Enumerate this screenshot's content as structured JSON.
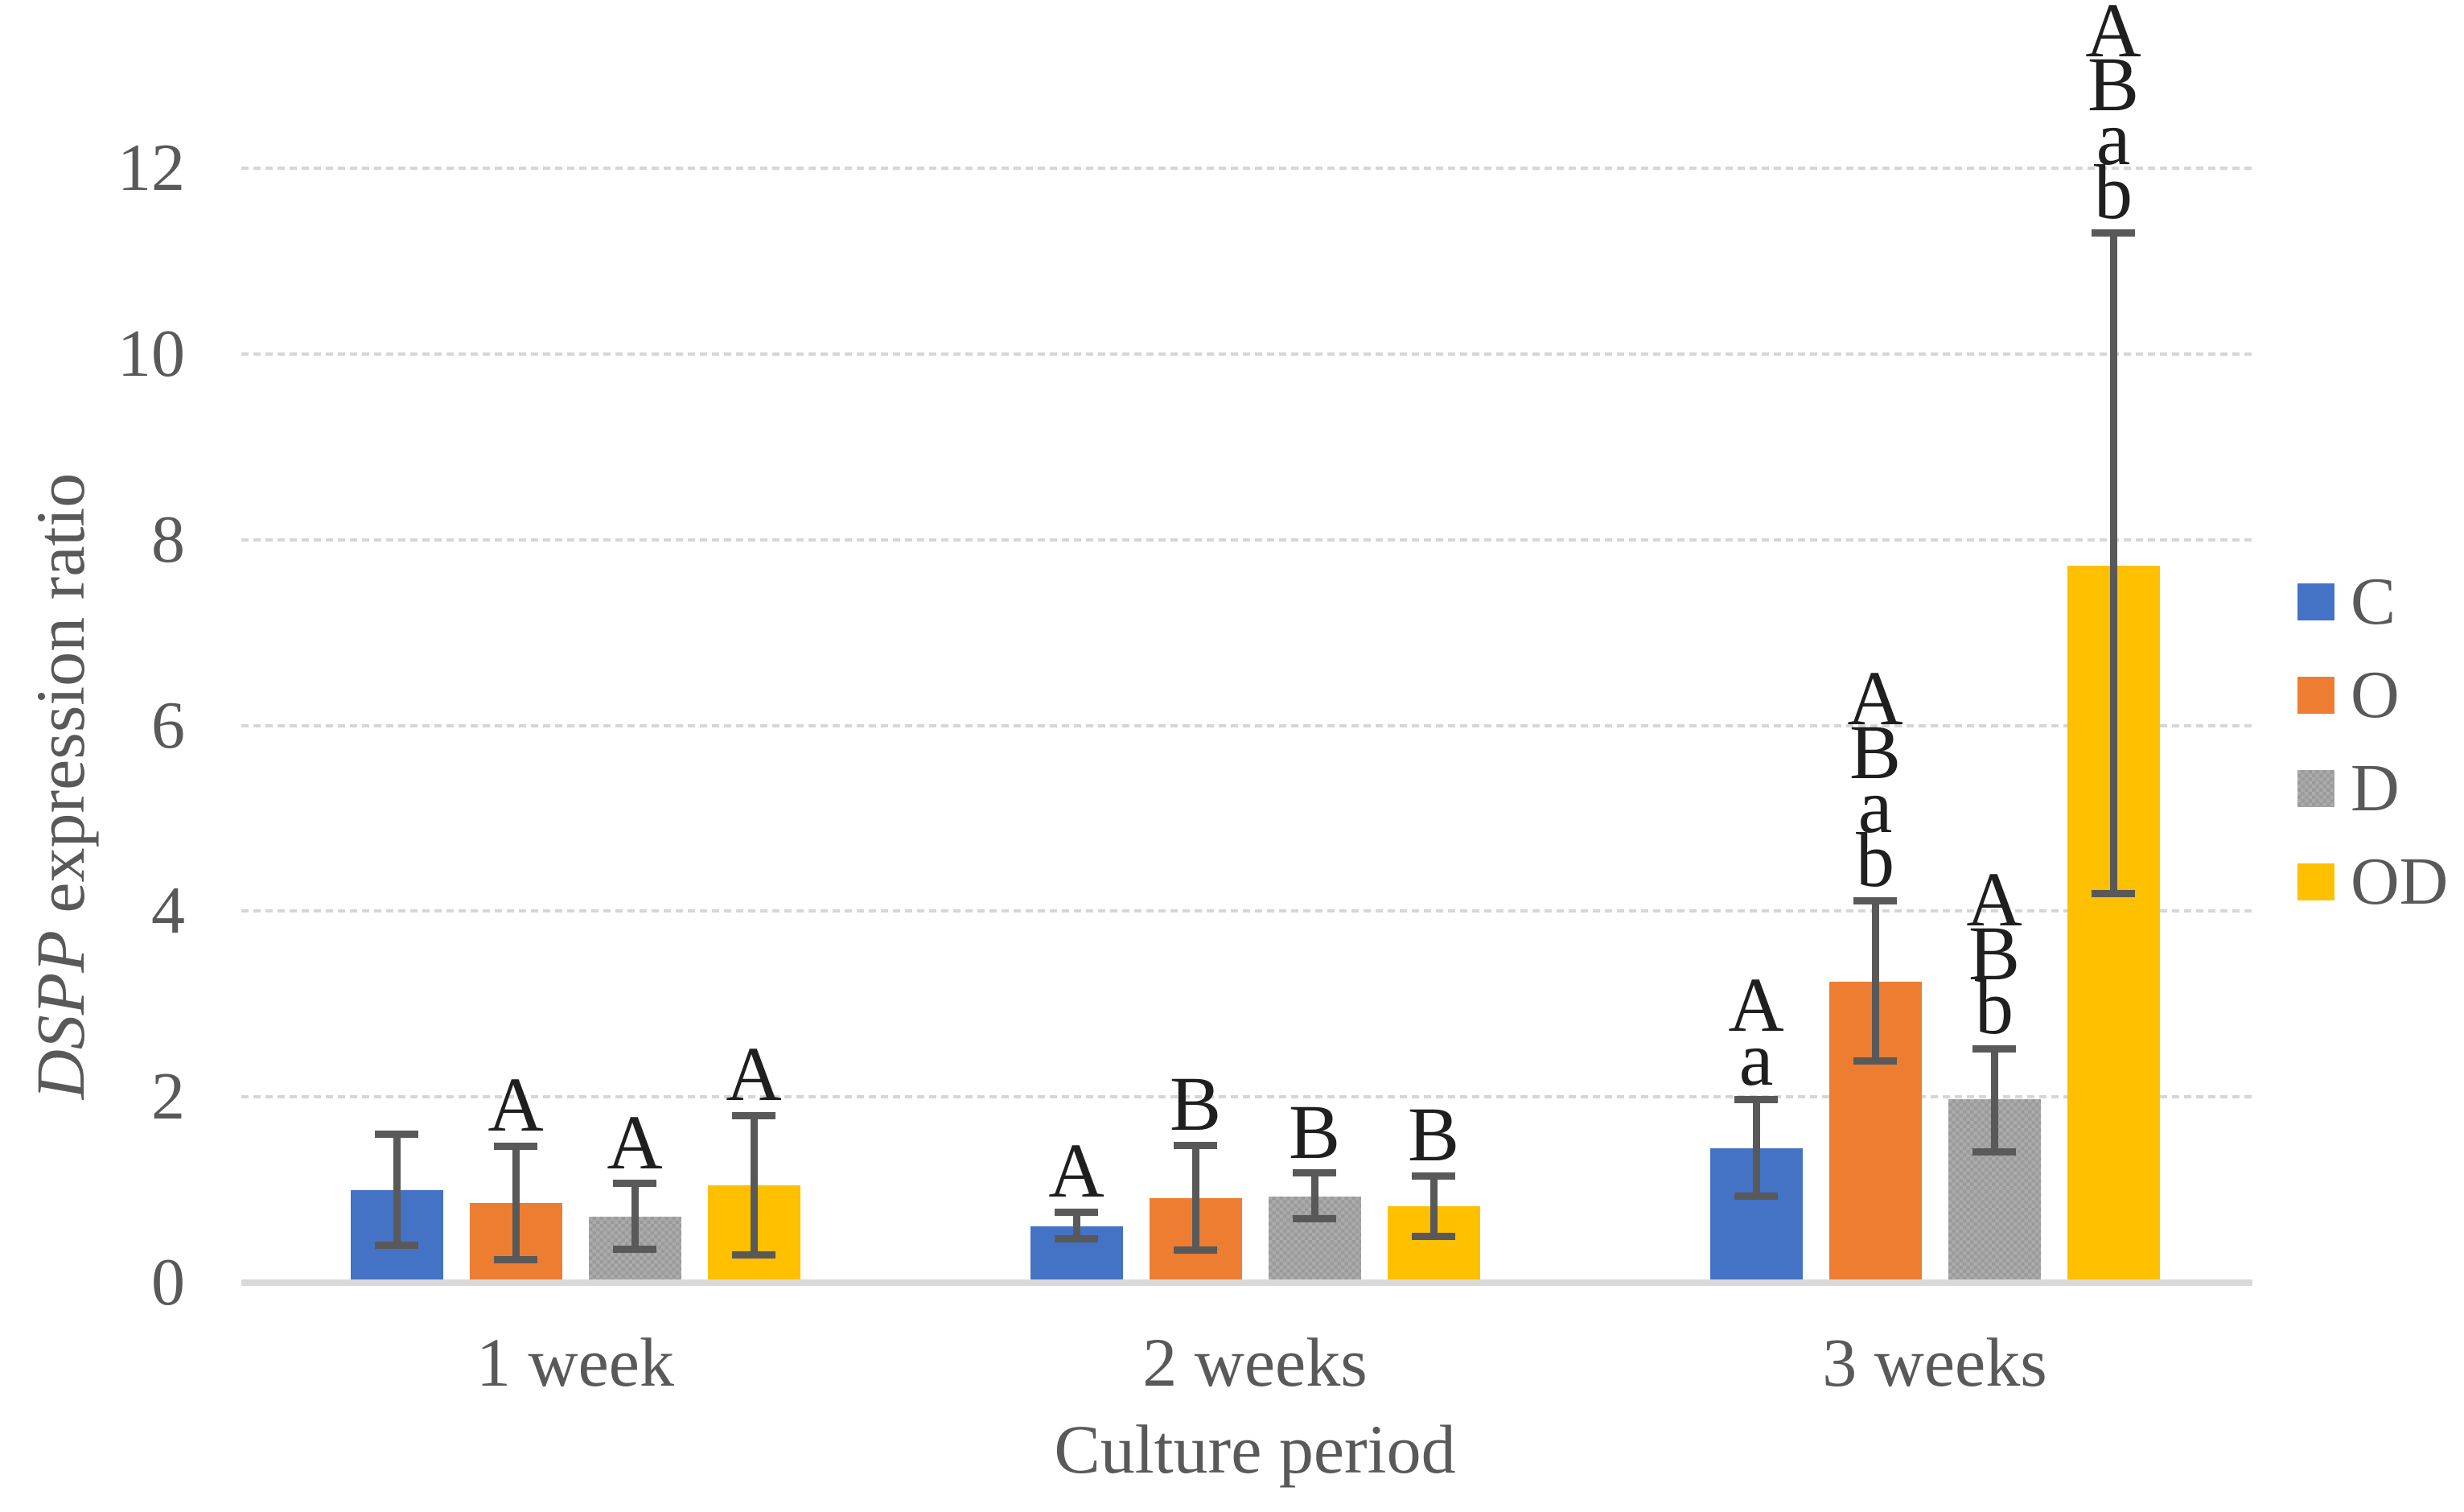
{
  "chart_data": {
    "type": "bar",
    "title": "",
    "ylabel_italic_part": "DSPP",
    "ylabel_regular_part": " expression ratio",
    "xlabel": "Culture period",
    "categories": [
      "1 week",
      "2 weeks",
      "3 weeks"
    ],
    "y_ticks": [
      0,
      2,
      4,
      6,
      8,
      10,
      12
    ],
    "ylim": [
      0,
      12.9
    ],
    "grid": true,
    "legend_position": "right",
    "series": [
      {
        "name": "C",
        "color": "#4472c4",
        "patterned": false,
        "values": [
          1.0,
          0.61,
          1.45
        ],
        "error_low": [
          0.4,
          0.47,
          0.93
        ],
        "error_high": [
          1.6,
          0.76,
          1.97
        ],
        "sig_letters": [
          [],
          [
            "A"
          ],
          [
            "A",
            "a"
          ]
        ]
      },
      {
        "name": "O",
        "color": "#ed7d31",
        "patterned": false,
        "values": [
          0.86,
          0.91,
          3.24
        ],
        "error_low": [
          0.25,
          0.35,
          2.39
        ],
        "error_high": [
          1.47,
          1.48,
          4.11
        ],
        "sig_letters": [
          [
            "A"
          ],
          [
            "B"
          ],
          [
            "A",
            "B",
            "a",
            "b"
          ]
        ]
      },
      {
        "name": "D",
        "color": "#ababab",
        "patterned": true,
        "values": [
          0.71,
          0.93,
          1.98
        ],
        "error_low": [
          0.36,
          0.69,
          1.41
        ],
        "error_high": [
          1.07,
          1.18,
          2.52
        ],
        "sig_letters": [
          [
            "A"
          ],
          [
            "B"
          ],
          [
            "A",
            "B",
            "b"
          ]
        ]
      },
      {
        "name": "OD",
        "color": "#ffc000",
        "patterned": false,
        "values": [
          1.05,
          0.82,
          7.72
        ],
        "error_low": [
          0.3,
          0.5,
          4.19
        ],
        "error_high": [
          1.8,
          1.15,
          11.3
        ],
        "sig_letters": [
          [
            "A"
          ],
          [
            "B"
          ],
          [
            "A",
            "B",
            "a",
            "b"
          ]
        ]
      }
    ],
    "colors": {
      "error_bar": "#595959",
      "gridline": "#d6d6d6",
      "axis_line": "#d9d9d9",
      "axis_text": "#595959",
      "sig_letter_text": "#1f1f1f",
      "background": "#ffffff"
    }
  }
}
